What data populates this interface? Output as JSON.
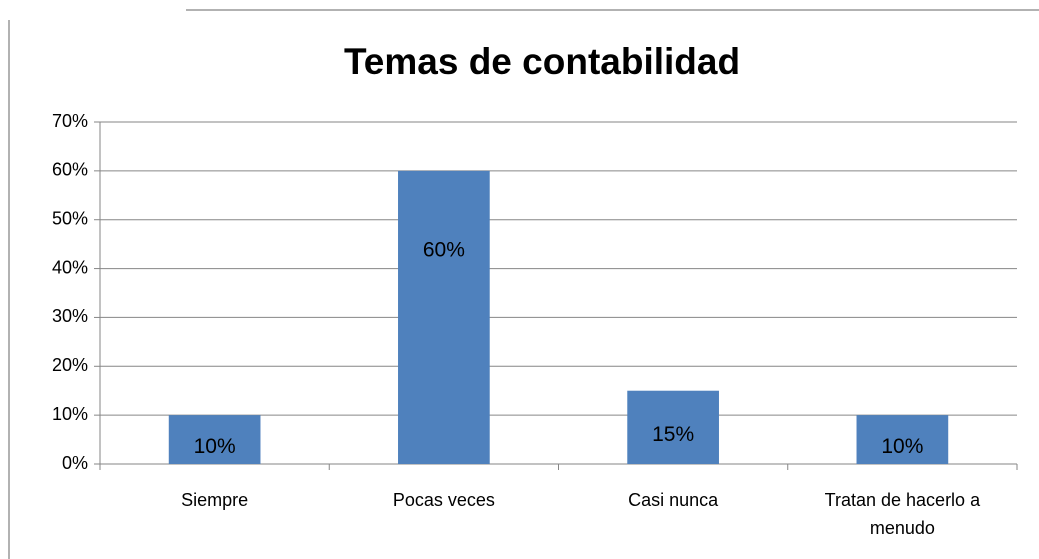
{
  "chart_data": {
    "type": "bar",
    "title": "Temas de contabilidad",
    "categories": [
      "Siempre",
      "Pocas veces",
      "Casi nunca",
      "Tratan de hacerlo a menudo"
    ],
    "values": [
      10,
      60,
      15,
      10
    ],
    "value_labels": [
      "10%",
      "60%",
      "15%",
      "10%"
    ],
    "color": "#4f81bd",
    "ylim": [
      0,
      70
    ],
    "yticks": [
      {
        "value": 0,
        "label": "0%"
      },
      {
        "value": 10,
        "label": "10%"
      },
      {
        "value": 20,
        "label": "20%"
      },
      {
        "value": 30,
        "label": "30%"
      },
      {
        "value": 40,
        "label": "40%"
      },
      {
        "value": 50,
        "label": "50%"
      },
      {
        "value": 60,
        "label": "60%"
      },
      {
        "value": 70,
        "label": "70%"
      }
    ],
    "grid": true
  }
}
